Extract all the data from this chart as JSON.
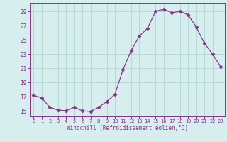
{
  "x": [
    0,
    1,
    2,
    3,
    4,
    5,
    6,
    7,
    8,
    9,
    10,
    11,
    12,
    13,
    14,
    15,
    16,
    17,
    18,
    19,
    20,
    21,
    22,
    23
  ],
  "y": [
    17.2,
    16.8,
    15.5,
    15.1,
    15.0,
    15.5,
    15.0,
    14.9,
    15.5,
    16.3,
    17.3,
    20.8,
    23.5,
    25.5,
    26.6,
    29.0,
    29.3,
    28.8,
    29.0,
    28.5,
    26.8,
    24.5,
    23.0,
    21.2
  ],
  "line_color": "#883388",
  "marker": "D",
  "marker_size": 2.5,
  "bg_color": "#d7eeee",
  "grid_color": "#b8d8d8",
  "xlabel": "Windchill (Refroidissement éolien,°C)",
  "ylabel_ticks": [
    15,
    17,
    19,
    21,
    23,
    25,
    27,
    29
  ],
  "ylim": [
    14.2,
    30.2
  ],
  "xlim": [
    -0.5,
    23.5
  ],
  "tick_color": "#883388",
  "spine_color": "#883388"
}
